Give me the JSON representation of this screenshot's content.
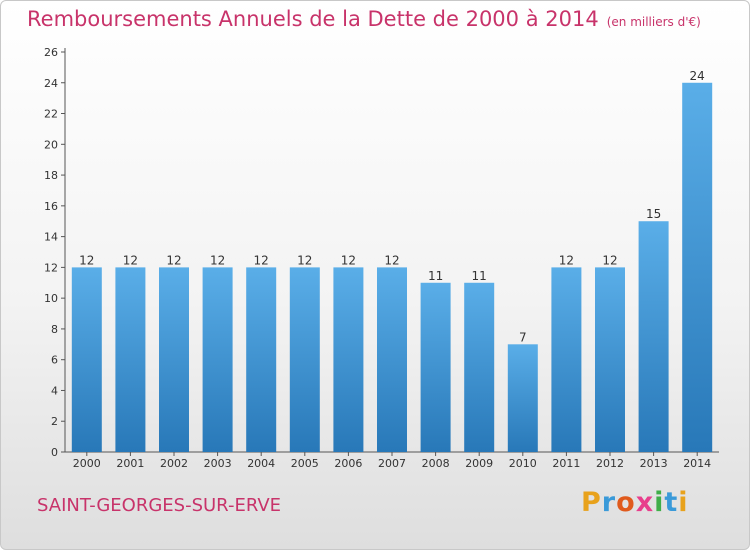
{
  "title": "Remboursements Annuels de la Dette de 2000 à 2014",
  "subtitle": "(en milliers d'€)",
  "commune": "SAINT-GEORGES-SUR-ERVE",
  "logo": {
    "letters": [
      "P",
      "r",
      "o",
      "x",
      "i",
      "t",
      "i"
    ],
    "colors": [
      "#e8a21c",
      "#3a9ad9",
      "#e05a1c",
      "#e83e8c",
      "#3fae49",
      "#3a9ad9",
      "#e8a21c"
    ]
  },
  "colors": {
    "bar_light": "#5aaee8",
    "bar_dark": "#2878b8",
    "accent": "#c8336a"
  },
  "chart_data": {
    "type": "bar",
    "title": "Remboursements Annuels de la Dette de 2000 à 2014",
    "subtitle": "(en milliers d'€)",
    "categories": [
      "2000",
      "2001",
      "2002",
      "2003",
      "2004",
      "2005",
      "2006",
      "2007",
      "2008",
      "2009",
      "2010",
      "2011",
      "2012",
      "2013",
      "2014"
    ],
    "values": [
      12,
      12,
      12,
      12,
      12,
      12,
      12,
      12,
      11,
      11,
      7,
      12,
      12,
      15,
      24
    ],
    "ylim": [
      0,
      26
    ],
    "yticks": [
      0,
      2,
      4,
      6,
      8,
      10,
      12,
      14,
      16,
      18,
      20,
      22,
      24,
      26
    ],
    "grid": false,
    "data_labels": true
  }
}
